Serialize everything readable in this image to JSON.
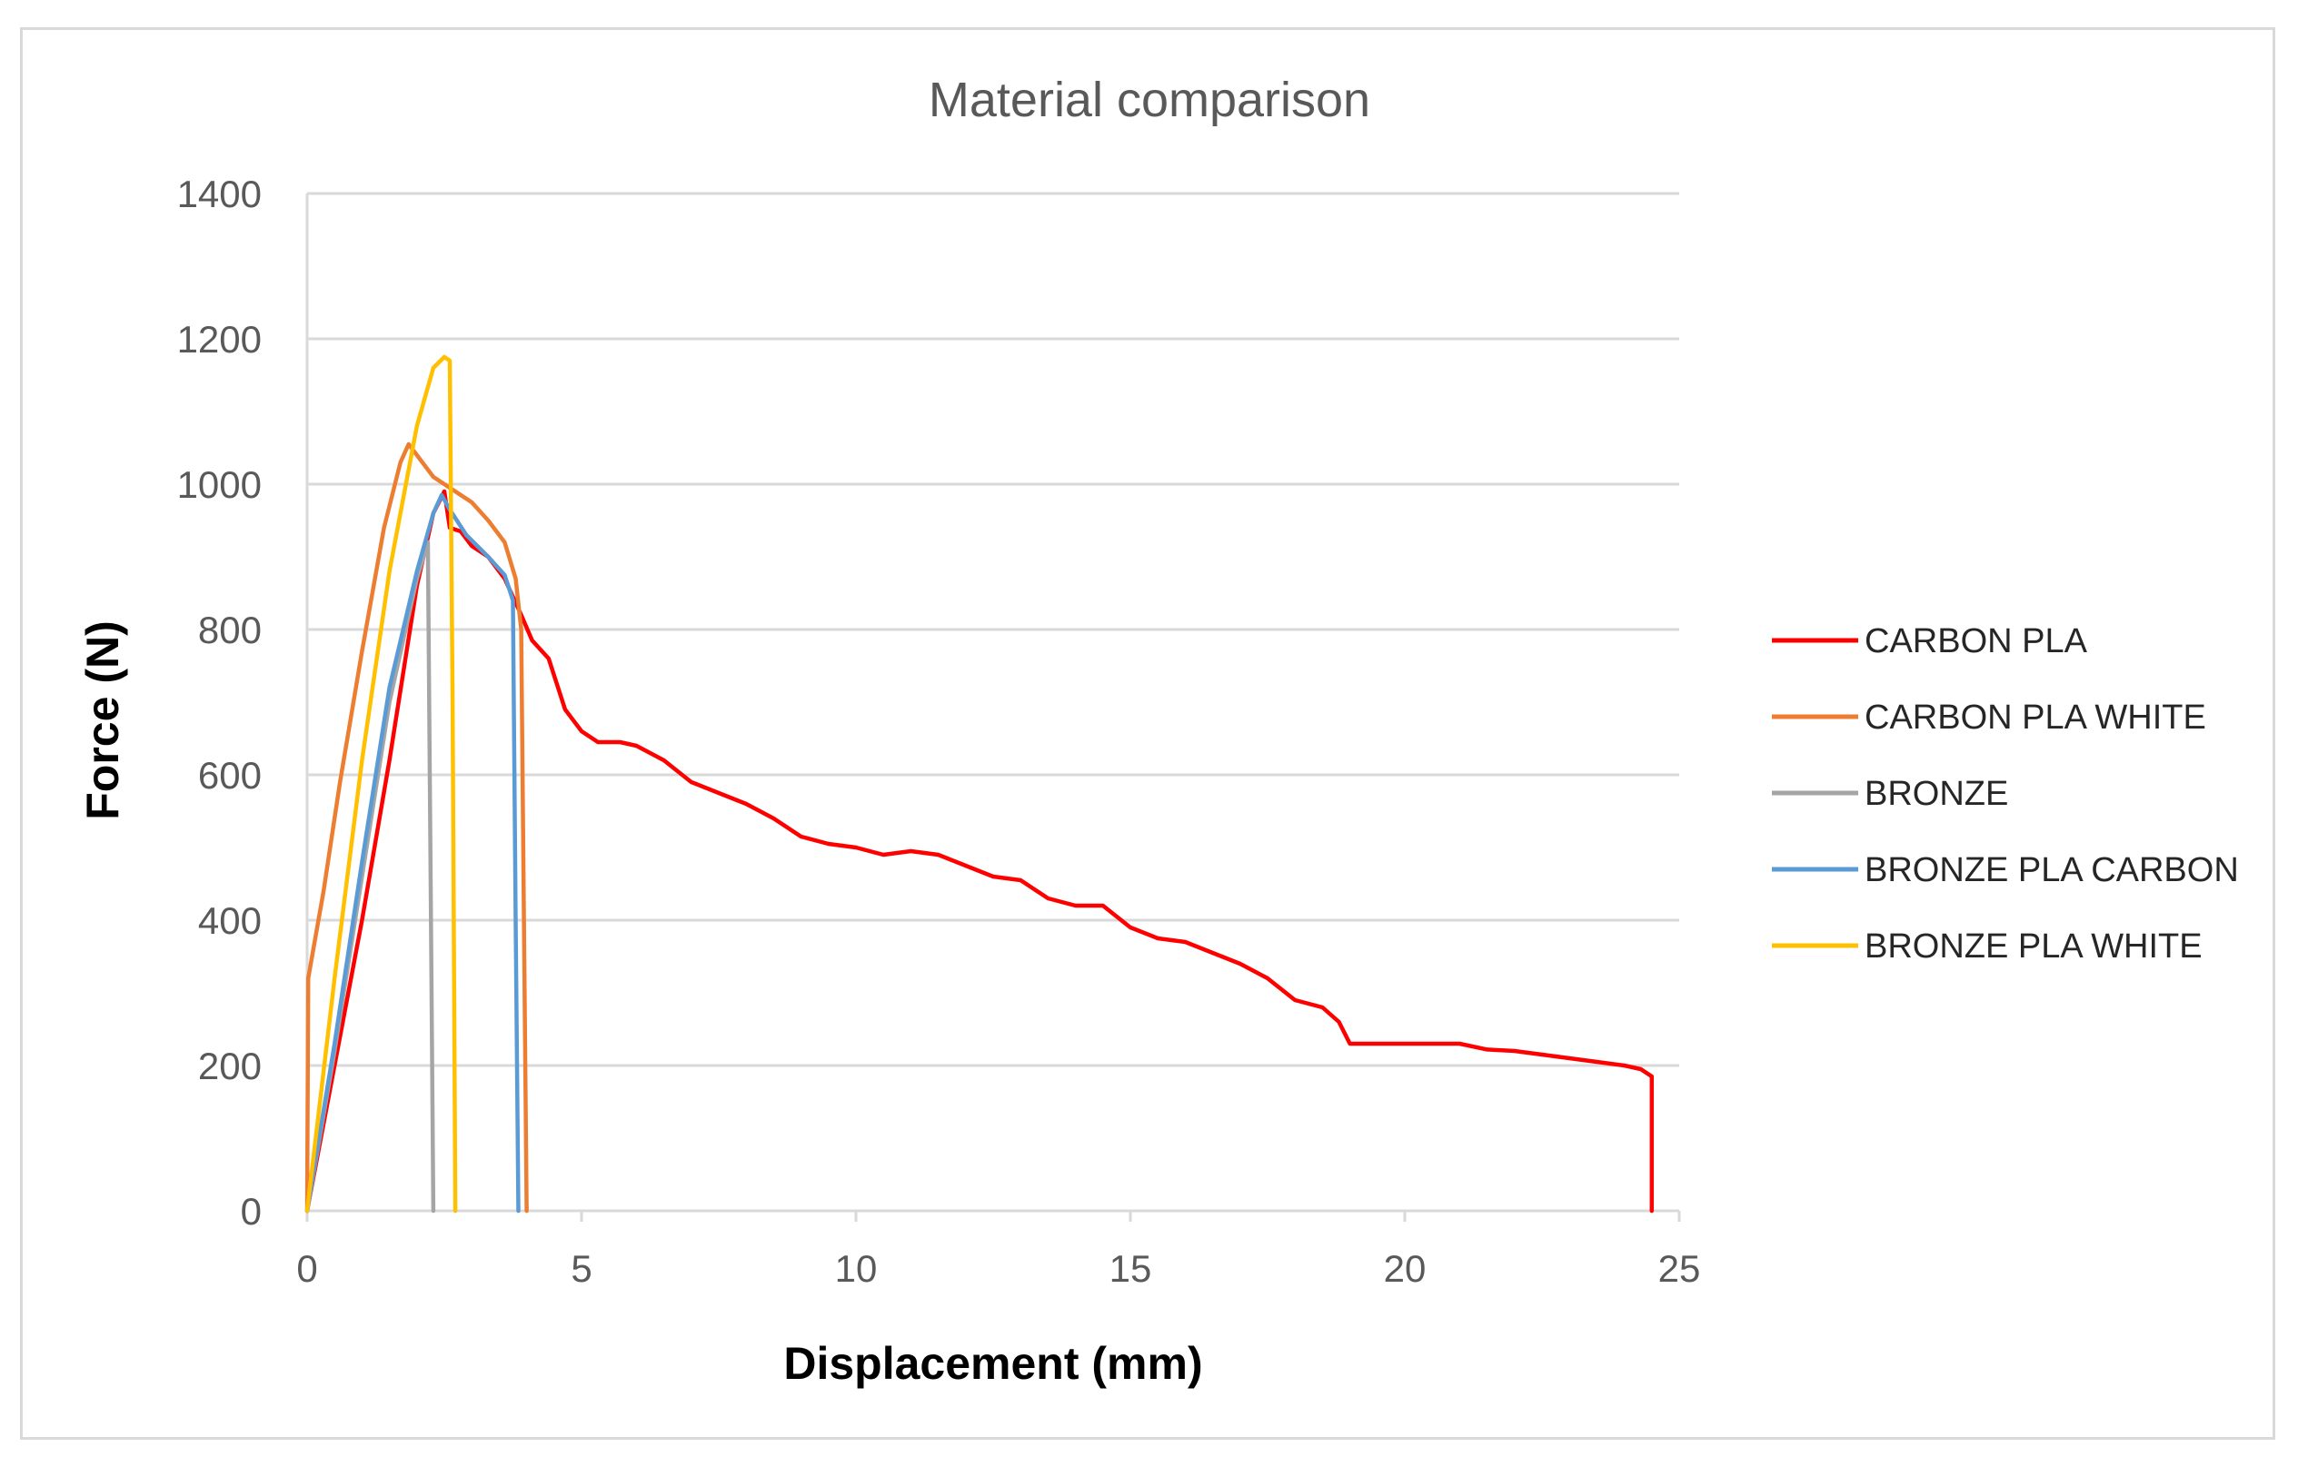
{
  "chart_data": {
    "type": "line",
    "title": "Material comparison",
    "xlabel": "Displacement (mm)",
    "ylabel": "Force (N)",
    "xlim": [
      0,
      25
    ],
    "ylim": [
      0,
      1400
    ],
    "xticks": [
      0,
      5,
      10,
      15,
      20,
      25
    ],
    "yticks": [
      0,
      200,
      400,
      600,
      800,
      1000,
      1200,
      1400
    ],
    "grid": "horizontal",
    "legend_position": "right",
    "series": [
      {
        "name": "CARBON PLA",
        "color": "#ff0000",
        "points": [
          [
            0,
            0
          ],
          [
            0.5,
            200
          ],
          [
            1,
            400
          ],
          [
            1.5,
            620
          ],
          [
            2,
            860
          ],
          [
            2.3,
            960
          ],
          [
            2.5,
            990
          ],
          [
            2.6,
            940
          ],
          [
            2.8,
            935
          ],
          [
            3,
            915
          ],
          [
            3.3,
            900
          ],
          [
            3.6,
            870
          ],
          [
            3.9,
            820
          ],
          [
            4.1,
            785
          ],
          [
            4.4,
            760
          ],
          [
            4.7,
            690
          ],
          [
            5,
            660
          ],
          [
            5.3,
            645
          ],
          [
            5.7,
            645
          ],
          [
            6,
            640
          ],
          [
            6.5,
            620
          ],
          [
            7,
            590
          ],
          [
            7.5,
            575
          ],
          [
            8,
            560
          ],
          [
            8.5,
            540
          ],
          [
            9,
            515
          ],
          [
            9.5,
            505
          ],
          [
            10,
            500
          ],
          [
            10.5,
            490
          ],
          [
            11,
            495
          ],
          [
            11.5,
            490
          ],
          [
            12,
            475
          ],
          [
            12.5,
            460
          ],
          [
            13,
            455
          ],
          [
            13.5,
            430
          ],
          [
            14,
            420
          ],
          [
            14.5,
            420
          ],
          [
            15,
            390
          ],
          [
            15.5,
            375
          ],
          [
            16,
            370
          ],
          [
            16.5,
            355
          ],
          [
            17,
            340
          ],
          [
            17.5,
            320
          ],
          [
            18,
            290
          ],
          [
            18.5,
            280
          ],
          [
            18.8,
            260
          ],
          [
            19,
            230
          ],
          [
            19.5,
            230
          ],
          [
            20,
            230
          ],
          [
            20.5,
            230
          ],
          [
            21,
            230
          ],
          [
            21.5,
            222
          ],
          [
            22,
            220
          ],
          [
            22.5,
            215
          ],
          [
            23,
            210
          ],
          [
            23.5,
            205
          ],
          [
            24,
            200
          ],
          [
            24.3,
            195
          ],
          [
            24.5,
            185
          ],
          [
            24.5,
            0
          ]
        ]
      },
      {
        "name": "CARBON PLA WHITE",
        "color": "#ed7d31",
        "points": [
          [
            0,
            0
          ],
          [
            0.02,
            320
          ],
          [
            0.3,
            440
          ],
          [
            0.6,
            590
          ],
          [
            1,
            770
          ],
          [
            1.4,
            940
          ],
          [
            1.7,
            1030
          ],
          [
            1.85,
            1055
          ],
          [
            2,
            1040
          ],
          [
            2.3,
            1010
          ],
          [
            2.6,
            995
          ],
          [
            3,
            975
          ],
          [
            3.3,
            950
          ],
          [
            3.6,
            920
          ],
          [
            3.8,
            870
          ],
          [
            3.9,
            800
          ],
          [
            3.95,
            400
          ],
          [
            4,
            0
          ]
        ]
      },
      {
        "name": "BRONZE",
        "color": "#a5a5a5",
        "points": [
          [
            0,
            0
          ],
          [
            0.5,
            220
          ],
          [
            1,
            460
          ],
          [
            1.5,
            700
          ],
          [
            2,
            870
          ],
          [
            2.2,
            920
          ],
          [
            2.3,
            0
          ]
        ]
      },
      {
        "name": "BRONZE PLA CARBON",
        "color": "#5b9bd5",
        "points": [
          [
            0,
            0
          ],
          [
            0.5,
            230
          ],
          [
            1,
            480
          ],
          [
            1.5,
            720
          ],
          [
            2,
            880
          ],
          [
            2.3,
            960
          ],
          [
            2.45,
            985
          ],
          [
            2.6,
            965
          ],
          [
            2.9,
            930
          ],
          [
            3.3,
            900
          ],
          [
            3.6,
            875
          ],
          [
            3.75,
            840
          ],
          [
            3.8,
            400
          ],
          [
            3.85,
            0
          ]
        ]
      },
      {
        "name": "BRONZE PLA WHITE",
        "color": "#ffc000",
        "points": [
          [
            0,
            0
          ],
          [
            0.5,
            320
          ],
          [
            1,
            620
          ],
          [
            1.5,
            880
          ],
          [
            2,
            1080
          ],
          [
            2.3,
            1160
          ],
          [
            2.5,
            1175
          ],
          [
            2.6,
            1170
          ],
          [
            2.65,
            700
          ],
          [
            2.7,
            0
          ]
        ]
      }
    ]
  }
}
